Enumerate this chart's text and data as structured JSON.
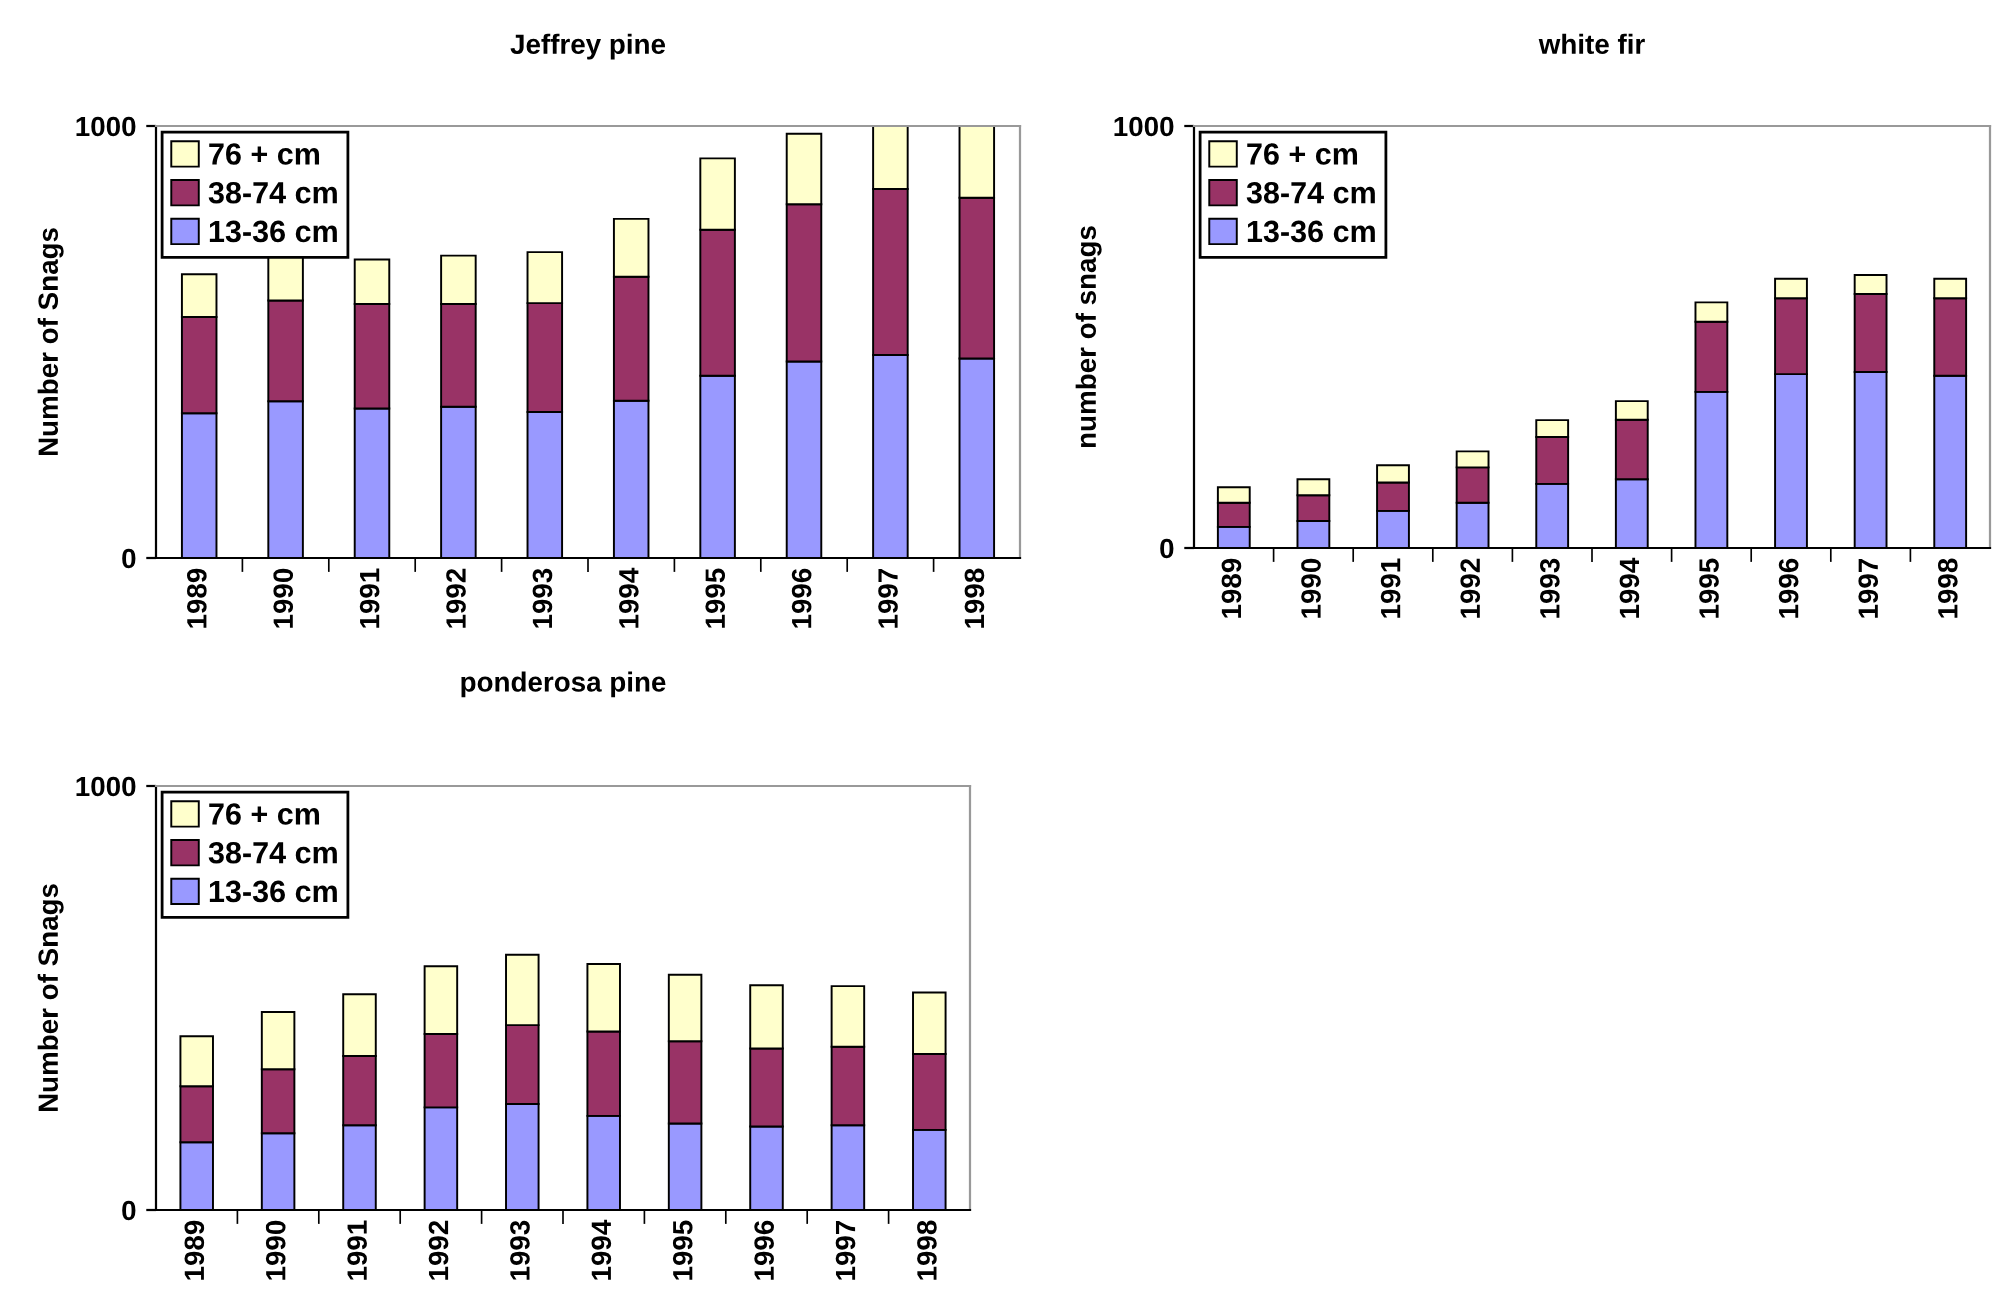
{
  "chart_data": [
    {
      "type": "bar",
      "title": "Jeffrey pine",
      "ylabel": "Number of Snags",
      "stacked": true,
      "legend": "top left",
      "grid": false,
      "categories": [
        "1989",
        "1990",
        "1991",
        "1992",
        "1993",
        "1994",
        "1995",
        "1996",
        "1997",
        "1998"
      ],
      "ylim": [
        0,
        1000
      ],
      "yticks": [
        0,
        1000
      ],
      "series": [
        {
          "name": "13-36 cm",
          "color": "#9999ff",
          "values": [
            335,
            363,
            346,
            350,
            338,
            364,
            422,
            455,
            470,
            462
          ]
        },
        {
          "name": "38-74 cm",
          "color": "#993366",
          "values": [
            223,
            233,
            242,
            238,
            252,
            287,
            338,
            364,
            384,
            372
          ]
        },
        {
          "name": "76 + cm",
          "color": "#ffffcc",
          "values": [
            99,
            101,
            103,
            112,
            118,
            134,
            165,
            163,
            146,
            166
          ]
        }
      ]
    },
    {
      "type": "bar",
      "title": "white fir",
      "ylabel": "number of snags",
      "stacked": true,
      "legend": "top left",
      "grid": false,
      "categories": [
        "1989",
        "1990",
        "1991",
        "1992",
        "1993",
        "1994",
        "1995",
        "1996",
        "1997",
        "1998"
      ],
      "ylim": [
        0,
        1000
      ],
      "yticks": [
        0,
        1000
      ],
      "series": [
        {
          "name": "13-36 cm",
          "color": "#9999ff",
          "values": [
            50,
            64,
            88,
            107,
            152,
            163,
            370,
            412,
            417,
            408
          ]
        },
        {
          "name": "38-74 cm",
          "color": "#993366",
          "values": [
            57,
            61,
            67,
            84,
            111,
            141,
            166,
            180,
            185,
            184
          ]
        },
        {
          "name": "76 + cm",
          "color": "#ffffcc",
          "values": [
            37,
            38,
            41,
            38,
            40,
            44,
            46,
            46,
            45,
            46
          ]
        }
      ]
    },
    {
      "type": "bar",
      "title": "ponderosa pine",
      "ylabel": "Number of Snags",
      "stacked": true,
      "legend": "top left",
      "grid": false,
      "categories": [
        "1989",
        "1990",
        "1991",
        "1992",
        "1993",
        "1994",
        "1995",
        "1996",
        "1997",
        "1998"
      ],
      "ylim": [
        0,
        1000
      ],
      "yticks": [
        0,
        1000
      ],
      "series": [
        {
          "name": "13-36 cm",
          "color": "#9999ff",
          "values": [
            160,
            181,
            200,
            242,
            250,
            222,
            204,
            197,
            200,
            189
          ]
        },
        {
          "name": "38-74 cm",
          "color": "#993366",
          "values": [
            132,
            151,
            163,
            173,
            186,
            199,
            194,
            184,
            185,
            179
          ]
        },
        {
          "name": "76 + cm",
          "color": "#ffffcc",
          "values": [
            118,
            135,
            146,
            160,
            166,
            159,
            157,
            149,
            143,
            145
          ]
        }
      ]
    }
  ]
}
